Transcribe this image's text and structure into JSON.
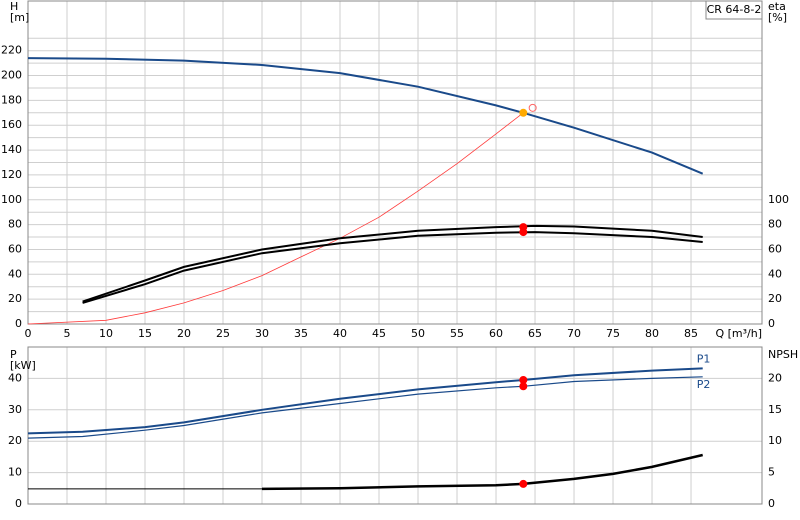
{
  "chart_data": [
    {
      "type": "line",
      "title": "CR 64-8-2",
      "ylabel": [
        "H",
        "[m]"
      ],
      "y2label": [
        "eta",
        "[%]"
      ],
      "xlabel": "Q [m³/h]",
      "xlim": [
        0,
        94.1
      ],
      "xticks": [
        0,
        5,
        10,
        15,
        20,
        25,
        30,
        35,
        40,
        45,
        50,
        55,
        60,
        65,
        70,
        75,
        80,
        85
      ],
      "ylim": [
        0,
        260
      ],
      "yticks": [
        0,
        20,
        40,
        60,
        80,
        100,
        120,
        140,
        160,
        180,
        200,
        220
      ],
      "y2lim": [
        0,
        260
      ],
      "y2ticks": [
        0,
        20,
        40,
        60,
        80,
        100
      ],
      "grid": true,
      "minor_grid": true,
      "xtick_labels": true,
      "series": [
        {
          "color": "#1a4a8a",
          "width": 2,
          "x": [
            0,
            10,
            20,
            30,
            40,
            50,
            60,
            63.5,
            70,
            80,
            86.5
          ],
          "values": [
            214,
            213.5,
            212,
            208.5,
            202,
            191,
            176,
            170,
            158,
            138,
            121
          ]
        },
        {
          "color": "#ff3b3b",
          "width": 0.8,
          "x": [
            0,
            10,
            15,
            20,
            25,
            30,
            35,
            40,
            45,
            50,
            55,
            60,
            63.5
          ],
          "values": [
            0,
            3,
            9,
            17,
            27,
            39,
            54,
            69,
            86,
            107,
            129,
            153,
            170
          ]
        },
        {
          "color": "#000000",
          "width": 2,
          "axis": "y2",
          "x": [
            7,
            15,
            20,
            30,
            40,
            50,
            60,
            65,
            70,
            80,
            86.5
          ],
          "values": [
            18,
            35,
            46,
            60,
            69,
            75,
            78,
            79,
            78.5,
            75,
            70
          ]
        },
        {
          "color": "#000000",
          "width": 2,
          "axis": "y2",
          "x": [
            7,
            15,
            20,
            30,
            40,
            50,
            60,
            65,
            70,
            80,
            86.5
          ],
          "values": [
            17,
            32,
            43,
            57,
            65,
            71,
            73.5,
            74,
            73,
            70,
            66
          ]
        },
        {
          "color": "#ff0000",
          "style": "point",
          "axis": "y2",
          "x": [
            63.5,
            63.5
          ],
          "values": [
            78,
            74
          ]
        },
        {
          "color": "#ffaa00",
          "style": "point",
          "x": [
            63.5
          ],
          "values": [
            170
          ]
        },
        {
          "color": "#ff6666",
          "style": "ring",
          "x": [
            64.7
          ],
          "values": [
            174
          ]
        }
      ]
    },
    {
      "type": "line",
      "ylabel": [
        "P",
        "[kW]"
      ],
      "y2label": [
        "NPSH"
      ],
      "xlim": [
        0,
        94.1
      ],
      "xticks": [
        0,
        5,
        10,
        15,
        20,
        25,
        30,
        35,
        40,
        45,
        50,
        55,
        60,
        65,
        70,
        75,
        80,
        85
      ],
      "ylim": [
        0,
        50
      ],
      "yticks": [
        0,
        10,
        20,
        30,
        40
      ],
      "y2lim": [
        0,
        25
      ],
      "y2ticks": [
        0,
        5,
        10,
        15,
        20
      ],
      "grid": true,
      "minor_grid": false,
      "xtick_labels": false,
      "series": [
        {
          "name": "P1",
          "label_side": "above",
          "color": "#1a4a8a",
          "width": 2,
          "x": [
            0,
            7,
            15,
            20,
            30,
            40,
            50,
            60,
            63.5,
            70,
            80,
            86.5
          ],
          "values": [
            22.5,
            23,
            24.5,
            26,
            30,
            33.5,
            36.5,
            38.8,
            39.5,
            41,
            42.5,
            43.2
          ]
        },
        {
          "name": "P2",
          "label_side": "below",
          "color": "#1a4a8a",
          "width": 1.2,
          "x": [
            0,
            7,
            15,
            20,
            30,
            40,
            50,
            60,
            63.5,
            70,
            80,
            86.5
          ],
          "values": [
            21,
            21.5,
            23.5,
            25,
            29,
            32,
            35,
            37,
            37.5,
            39,
            40,
            40.5
          ]
        },
        {
          "color": "#000000",
          "width": 1,
          "axis": "y2",
          "x": [
            0,
            30
          ],
          "values": [
            2.4,
            2.4
          ]
        },
        {
          "color": "#000000",
          "width": 2.5,
          "axis": "y2",
          "x": [
            30,
            40,
            50,
            60,
            63.5,
            70,
            75,
            80,
            86.5
          ],
          "values": [
            2.4,
            2.5,
            2.8,
            3.0,
            3.2,
            4.0,
            4.8,
            5.9,
            7.8
          ]
        },
        {
          "color": "#ff0000",
          "style": "point",
          "x": [
            63.5,
            63.5
          ],
          "values": [
            39.5,
            37.5
          ]
        },
        {
          "color": "#ff0000",
          "style": "point",
          "axis": "y2",
          "x": [
            63.5
          ],
          "values": [
            3.2
          ]
        }
      ]
    }
  ]
}
